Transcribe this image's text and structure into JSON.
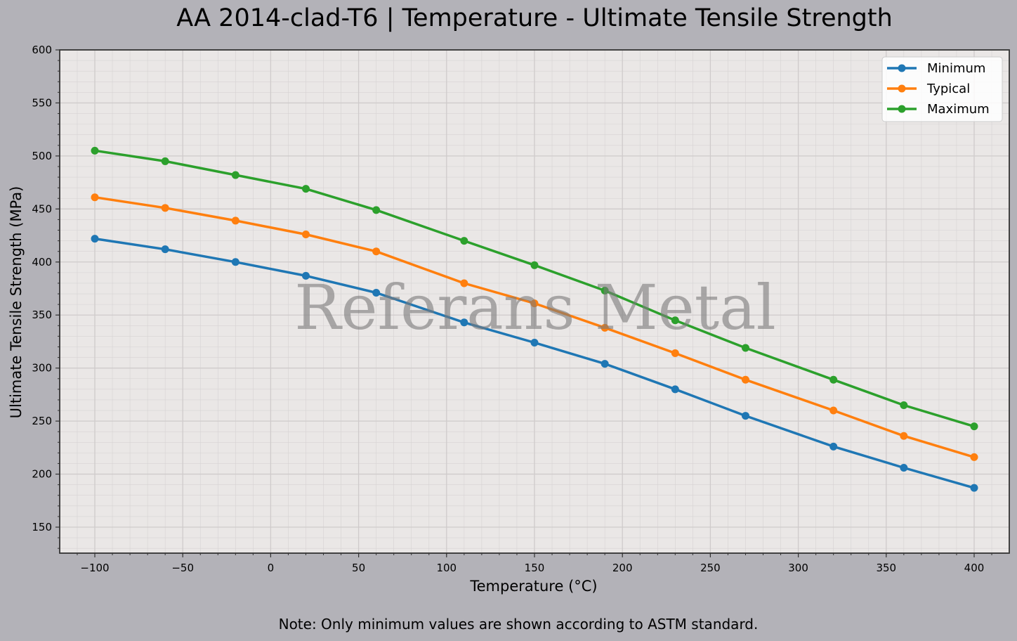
{
  "title": "AA 2014-clad-T6 | Temperature - Ultimate Tensile Strength",
  "note": "Note: Only minimum values are shown according to ASTM standard.",
  "watermark": "Referans Metal",
  "colors": {
    "figure_bg": "#b3b2b8",
    "plot_bg": "#eae7e6",
    "minimum": "#1f77b4",
    "typical": "#ff7f0e",
    "maximum": "#2ca02c"
  },
  "chart_data": {
    "type": "line",
    "title": "AA 2014-clad-T6 | Temperature - Ultimate Tensile Strength",
    "xlabel": "Temperature (°C)",
    "ylabel": "Ultimate Tensile Strength (MPa)",
    "x": [
      -100,
      -60,
      -20,
      20,
      60,
      110,
      150,
      190,
      230,
      270,
      320,
      360,
      400
    ],
    "series": [
      {
        "name": "Minimum",
        "color": "#1f77b4",
        "values": [
          422,
          412,
          400,
          387,
          371,
          343,
          324,
          304,
          280,
          255,
          226,
          206,
          187
        ]
      },
      {
        "name": "Typical",
        "color": "#ff7f0e",
        "values": [
          461,
          451,
          439,
          426,
          410,
          380,
          361,
          338,
          314,
          289,
          260,
          236,
          216
        ]
      },
      {
        "name": "Maximum",
        "color": "#2ca02c",
        "values": [
          505,
          495,
          482,
          469,
          449,
          420,
          397,
          373,
          345,
          319,
          289,
          265,
          245
        ]
      }
    ],
    "xlim": [
      -120,
      420
    ],
    "ylim": [
      125,
      600
    ],
    "xticks": [
      -100,
      -50,
      0,
      50,
      100,
      150,
      200,
      250,
      300,
      350,
      400
    ],
    "xtick_labels": [
      "−100",
      "−50",
      "0",
      "50",
      "100",
      "150",
      "200",
      "250",
      "300",
      "350",
      "400"
    ],
    "yticks": [
      150,
      200,
      250,
      300,
      350,
      400,
      450,
      500,
      550,
      600
    ],
    "ytick_labels": [
      "150",
      "200",
      "250",
      "300",
      "350",
      "400",
      "450",
      "500",
      "550",
      "600"
    ],
    "grid": true,
    "minor_grid": true,
    "legend_position": "upper right",
    "markers": "circle"
  }
}
